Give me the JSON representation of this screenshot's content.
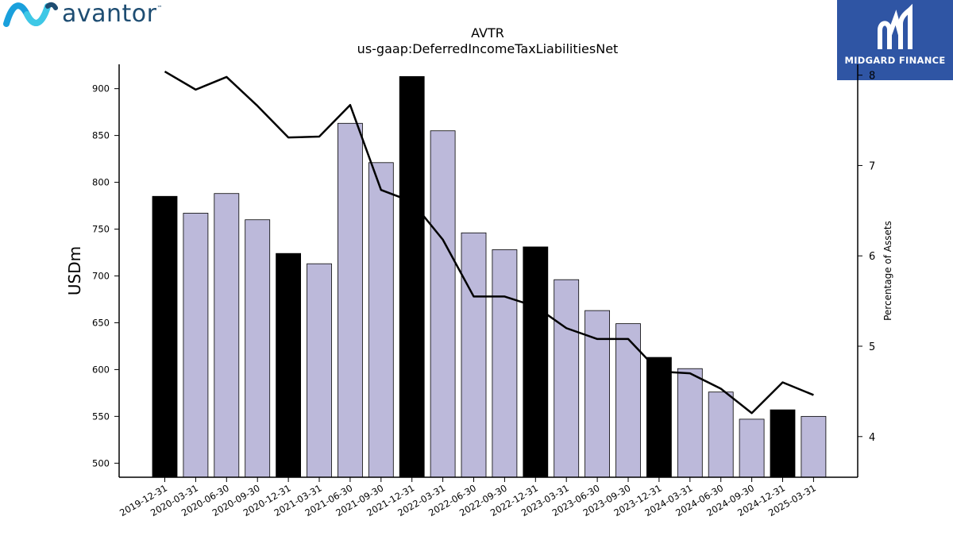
{
  "brand": {
    "left_logo_text": "avantor",
    "left_logo_tm": "™",
    "right_logo_text": "MIDGARD FINANCE",
    "left_logo_colors": [
      "#1aa0dc",
      "#3ec8e6",
      "#1e4d72"
    ],
    "right_logo_bg": "#2f55a4"
  },
  "chart_data": {
    "type": "bar",
    "title": "AVTR",
    "subtitle": "us-gaap:DeferredIncomeTaxLiabilitiesNet",
    "ylabel": "USDm",
    "y2label": "Percentage of Assets",
    "ylim": [
      485,
      926
    ],
    "y2lim": [
      3.55,
      8.12
    ],
    "yticks": [
      500,
      550,
      600,
      650,
      700,
      750,
      800,
      850,
      900
    ],
    "y2ticks": [
      4,
      5,
      6,
      7,
      8
    ],
    "categories": [
      "2019-12-31",
      "2020-03-31",
      "2020-06-30",
      "2020-09-30",
      "2020-12-31",
      "2021-03-31",
      "2021-06-30",
      "2021-09-30",
      "2021-12-31",
      "2022-03-31",
      "2022-06-30",
      "2022-09-30",
      "2022-12-31",
      "2023-03-31",
      "2023-06-30",
      "2023-09-30",
      "2023-12-31",
      "2024-03-31",
      "2024-06-30",
      "2024-09-30",
      "2024-12-31",
      "2025-03-31"
    ],
    "values": [
      785,
      767,
      788,
      760,
      724,
      713,
      863,
      821,
      913,
      855,
      746,
      728,
      731,
      696,
      663,
      649,
      613,
      601,
      576,
      547,
      557,
      550
    ],
    "bar_colors": {
      "year_end": "#000000",
      "quarter": "#bcb9da",
      "edge": "#000000"
    },
    "year_end_flags": [
      true,
      false,
      false,
      false,
      true,
      false,
      false,
      false,
      true,
      false,
      false,
      false,
      true,
      false,
      false,
      false,
      true,
      false,
      false,
      false,
      true,
      false
    ],
    "line": {
      "axis": "right",
      "color": "#000000",
      "values": [
        8.04,
        7.84,
        7.98,
        7.66,
        7.31,
        7.32,
        7.67,
        6.73,
        6.6,
        6.18,
        5.55,
        5.55,
        5.44,
        5.2,
        5.08,
        5.08,
        4.72,
        4.7,
        4.53,
        4.26,
        4.6,
        4.46
      ]
    },
    "grid": false
  }
}
